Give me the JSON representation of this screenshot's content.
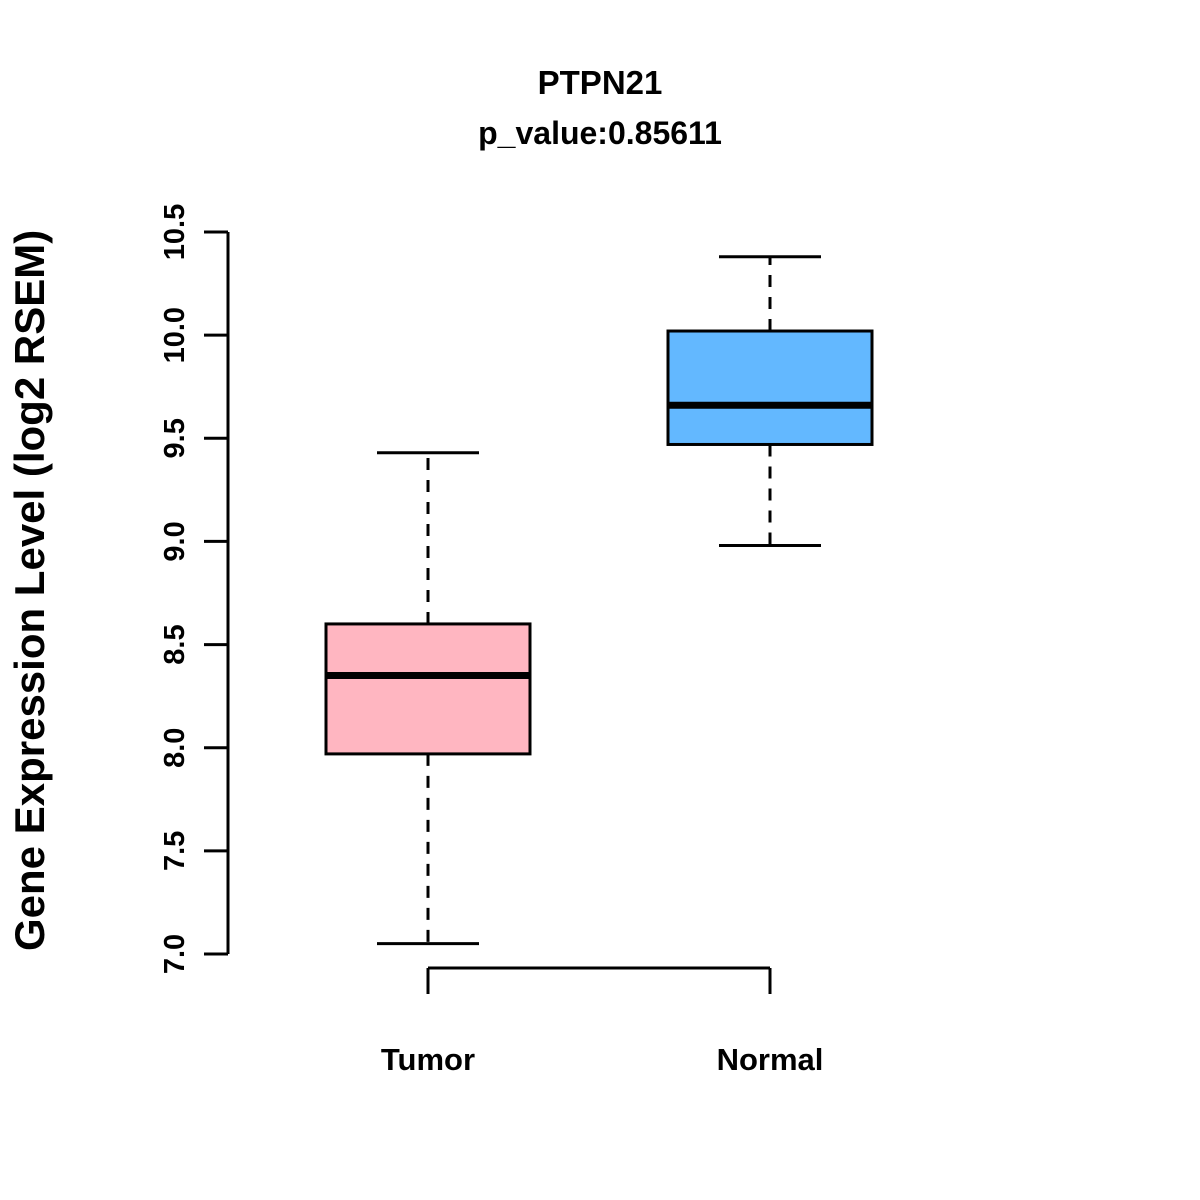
{
  "title": "PTPN21",
  "subtitle": "p_value:0.85611",
  "chart_data": {
    "type": "boxplot",
    "title": "PTPN21",
    "subtitle": "p_value:0.85611",
    "xlabel": "",
    "ylabel": "Gene Expression Level (log2 RSEM)",
    "ylim": [
      7.0,
      10.5
    ],
    "yticks": [
      {
        "value": 7.0,
        "label": "7.0"
      },
      {
        "value": 7.5,
        "label": "7.5"
      },
      {
        "value": 8.0,
        "label": "8.0"
      },
      {
        "value": 8.5,
        "label": "8.5"
      },
      {
        "value": 9.0,
        "label": "9.0"
      },
      {
        "value": 9.5,
        "label": "9.5"
      },
      {
        "value": 10.0,
        "label": "10.0"
      },
      {
        "value": 10.5,
        "label": "10.5"
      }
    ],
    "categories": [
      "Tumor",
      "Normal"
    ],
    "grid": false,
    "legend": "none",
    "series": [
      {
        "name": "Tumor",
        "color": "#FFB6C1",
        "min": 7.05,
        "q1": 7.97,
        "median": 8.35,
        "q3": 8.6,
        "max": 9.43
      },
      {
        "name": "Normal",
        "color": "#63B8FF",
        "min": 8.98,
        "q1": 9.47,
        "median": 9.66,
        "q3": 10.02,
        "max": 10.38
      }
    ]
  }
}
